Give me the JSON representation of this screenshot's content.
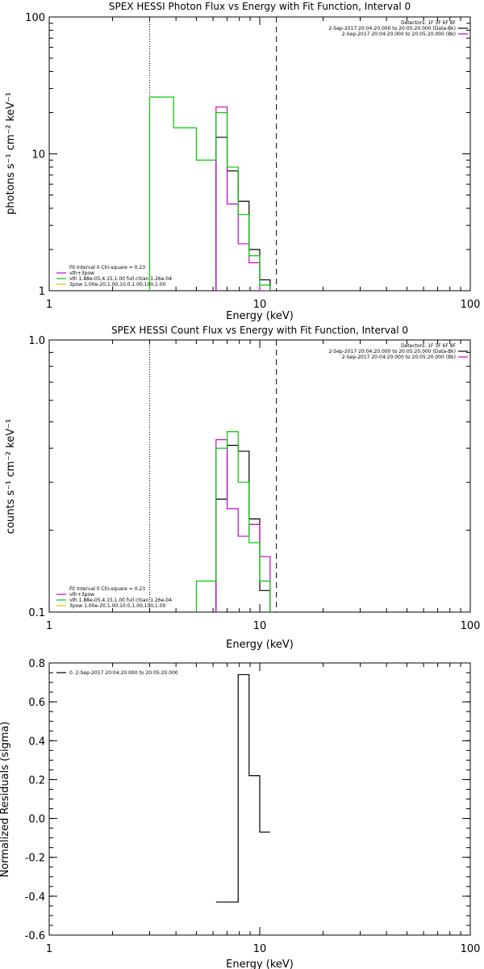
{
  "chart_data": [
    {
      "id": "photon",
      "type": "line",
      "title": "SPEX HESSI Photon Flux vs Energy with Fit Function, Interval 0",
      "xlabel": "Energy (keV)",
      "ylabel": "photons s⁻¹ cm⁻² keV⁻¹",
      "xscale": "log",
      "yscale": "log",
      "xlim": [
        1,
        100
      ],
      "ylim": [
        1,
        100
      ],
      "xticks": [
        {
          "v": 1,
          "label": "1"
        },
        {
          "v": 10,
          "label": "10"
        },
        {
          "v": 100,
          "label": "100"
        }
      ],
      "yticks": [
        {
          "v": 1,
          "label": "1"
        },
        {
          "v": 10,
          "label": "10"
        },
        {
          "v": 100,
          "label": "100"
        }
      ],
      "vlines": [
        {
          "x": 3.0,
          "style": "dotted"
        },
        {
          "x": 12.0,
          "style": "dashed"
        }
      ],
      "legend_right": [
        {
          "text": "Detectors: 1F 3F 6F 8F",
          "color": null
        },
        {
          "text": "2-Sep-2017 20:04:20.000 to 20:05:20.000 (Data-Bk)",
          "color": "#000000"
        },
        {
          "text": "2-Sep-2017 20:04:20.000 to 20:05:20.000 (Bk)",
          "color": "#cc00cc"
        }
      ],
      "legend_left": [
        {
          "text": "Fit Interval 0   Chi-square = 0.23",
          "color": null
        },
        {
          "text": "vth+3pow",
          "color": "#cc00cc"
        },
        {
          "text": "vth 1.88e-05,4.15,1.00  full chian 1.26e-04",
          "color": "#00cc00"
        },
        {
          "text": "3pow 1.00e-20,1.00,10.0,1.00,100,1.00",
          "color": "#e0c000"
        }
      ],
      "series": [
        {
          "color": "#000000",
          "bins": [
            [
              6.2,
              7.0,
              13.2
            ],
            [
              7.0,
              7.9,
              7.5
            ],
            [
              7.9,
              8.9,
              4.5
            ],
            [
              8.9,
              10.0,
              2.0
            ],
            [
              10.0,
              11.2,
              1.2
            ]
          ]
        },
        {
          "color": "#cc00cc",
          "bins": [
            [
              6.2,
              7.0,
              22.0
            ],
            [
              7.0,
              7.9,
              4.3
            ],
            [
              7.9,
              8.9,
              2.2
            ],
            [
              8.9,
              10.0,
              1.6
            ],
            [
              10.0,
              11.2,
              1.0
            ]
          ]
        },
        {
          "color": "#00cc00",
          "bins": [
            [
              3.0,
              3.9,
              26.0
            ],
            [
              3.9,
              5.0,
              15.5
            ],
            [
              5.0,
              6.2,
              9.0
            ],
            [
              6.2,
              7.0,
              20.0
            ],
            [
              7.0,
              7.9,
              8.0
            ],
            [
              7.9,
              8.9,
              3.6
            ],
            [
              8.9,
              10.0,
              1.8
            ],
            [
              10.0,
              11.2,
              1.1
            ]
          ]
        }
      ]
    },
    {
      "id": "count",
      "type": "line",
      "title": "SPEX HESSI Count Flux vs Energy with Fit Function, Interval 0",
      "xlabel": "Energy (keV)",
      "ylabel": "counts s⁻¹ cm⁻² keV⁻¹",
      "xscale": "log",
      "yscale": "log",
      "xlim": [
        1,
        100
      ],
      "ylim": [
        0.1,
        1.0
      ],
      "xticks": [
        {
          "v": 1,
          "label": "1"
        },
        {
          "v": 10,
          "label": "10"
        },
        {
          "v": 100,
          "label": "100"
        }
      ],
      "yticks": [
        {
          "v": 0.1,
          "label": "0.1"
        },
        {
          "v": 1.0,
          "label": "1.0"
        }
      ],
      "vlines": [
        {
          "x": 3.0,
          "style": "dotted"
        },
        {
          "x": 12.0,
          "style": "dashed"
        }
      ],
      "legend_right": [
        {
          "text": "Detectors: 1F 3F 6F 8F",
          "color": null
        },
        {
          "text": "2-Sep-2017 20:04:20.000 to 20:05:20.000 (Data-Bk)",
          "color": "#000000"
        },
        {
          "text": "2-Sep-2017 20:04:20.000 to 20:05:20.000 (Bk)",
          "color": "#cc00cc"
        }
      ],
      "legend_left": [
        {
          "text": "Fit Interval 0   Chi-square = 0.23",
          "color": null
        },
        {
          "text": "vth+3pow",
          "color": "#cc00cc"
        },
        {
          "text": "vth 1.88e-05,4.15,1.00  full chian 1.26e-04",
          "color": "#00cc00"
        },
        {
          "text": "3pow 1.00e-20,1.00,10.0,1.00,100,1.00",
          "color": "#e0c000"
        }
      ],
      "series": [
        {
          "color": "#000000",
          "bins": [
            [
              6.2,
              7.0,
              0.26
            ],
            [
              7.0,
              7.9,
              0.41
            ],
            [
              7.9,
              8.9,
              0.39
            ],
            [
              8.9,
              10.0,
              0.22
            ],
            [
              10.0,
              11.2,
              0.12
            ]
          ]
        },
        {
          "color": "#cc00cc",
          "bins": [
            [
              6.2,
              7.0,
              0.43
            ],
            [
              7.0,
              7.9,
              0.24
            ],
            [
              7.9,
              8.9,
              0.19
            ],
            [
              8.9,
              10.0,
              0.21
            ],
            [
              10.0,
              11.2,
              0.16
            ]
          ]
        },
        {
          "color": "#00cc00",
          "bins": [
            [
              5.0,
              6.2,
              0.13
            ],
            [
              6.2,
              7.0,
              0.4
            ],
            [
              7.0,
              7.9,
              0.46
            ],
            [
              7.9,
              8.9,
              0.3
            ],
            [
              8.9,
              10.0,
              0.18
            ],
            [
              10.0,
              11.2,
              0.13
            ]
          ]
        }
      ]
    },
    {
      "id": "resid",
      "type": "line",
      "title": "",
      "xlabel": "Energy (keV)",
      "ylabel": "Normalized Residuals (sigma)",
      "xscale": "log",
      "yscale": "linear",
      "xlim": [
        1,
        100
      ],
      "ylim": [
        -0.6,
        0.8
      ],
      "xticks": [
        {
          "v": 1,
          "label": "1"
        },
        {
          "v": 10,
          "label": "10"
        },
        {
          "v": 100,
          "label": "100"
        }
      ],
      "yticks": [
        {
          "v": 0.8,
          "label": "0.8"
        },
        {
          "v": 0.6,
          "label": "0.6"
        },
        {
          "v": 0.4,
          "label": "0.4"
        },
        {
          "v": 0.2,
          "label": "0.2"
        },
        {
          "v": 0.0,
          "label": "0.0"
        },
        {
          "v": -0.2,
          "label": "-0.2"
        },
        {
          "v": -0.4,
          "label": "-0.4"
        },
        {
          "v": -0.6,
          "label": "-0.6"
        }
      ],
      "vlines": [],
      "legend_right": [],
      "legend_left": [],
      "legend_top": [
        {
          "text": "0.  2-Sep-2017 20:04:20.000 to 20:05:20.000",
          "color": "#000000"
        }
      ],
      "series": [
        {
          "color": "#000000",
          "bins": [
            [
              6.2,
              7.9,
              -0.43
            ],
            [
              7.9,
              8.9,
              0.74
            ],
            [
              8.9,
              10.0,
              0.22
            ],
            [
              10.0,
              11.2,
              -0.07
            ]
          ]
        }
      ]
    }
  ]
}
